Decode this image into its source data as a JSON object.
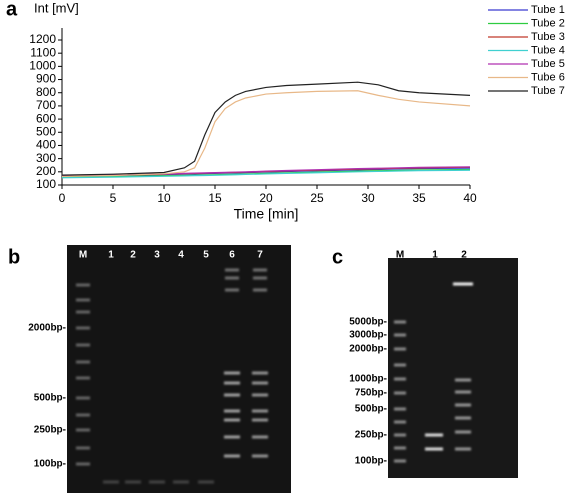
{
  "chart_data": {
    "type": "line",
    "panel": "a",
    "ylabel": "Int [mV]",
    "xlabel": "Time [min]",
    "x": [
      0,
      5,
      10,
      12,
      13,
      14,
      15,
      16,
      17,
      18,
      20,
      22,
      25,
      29,
      31,
      33,
      35,
      40
    ],
    "xlim": [
      0,
      40
    ],
    "xticks": [
      0,
      5,
      10,
      15,
      20,
      25,
      30,
      35,
      40
    ],
    "ylim": [
      100,
      1200
    ],
    "yticks": [
      100,
      200,
      300,
      400,
      500,
      600,
      700,
      800,
      900,
      1000,
      1100,
      1200
    ],
    "series": [
      {
        "name": "Tube 1",
        "color": "#3b3bd0",
        "values": [
          165,
          170,
          178,
          182,
          184,
          186,
          188,
          190,
          192,
          194,
          198,
          202,
          208,
          215,
          218,
          222,
          225,
          228
        ]
      },
      {
        "name": "Tube 2",
        "color": "#2ecc40",
        "values": [
          160,
          164,
          170,
          173,
          175,
          176,
          178,
          180,
          182,
          184,
          188,
          192,
          198,
          205,
          208,
          211,
          214,
          218
        ]
      },
      {
        "name": "Tube 3",
        "color": "#c0392b",
        "values": [
          168,
          174,
          182,
          186,
          188,
          190,
          192,
          194,
          196,
          198,
          202,
          207,
          213,
          220,
          223,
          227,
          230,
          235
        ]
      },
      {
        "name": "Tube 4",
        "color": "#40d0d0",
        "values": [
          155,
          160,
          166,
          169,
          171,
          172,
          174,
          176,
          178,
          180,
          184,
          188,
          193,
          200,
          203,
          206,
          209,
          212
        ]
      },
      {
        "name": "Tube 5",
        "color": "#b030b0",
        "values": [
          170,
          176,
          184,
          188,
          190,
          192,
          194,
          196,
          198,
          200,
          205,
          210,
          216,
          224,
          227,
          230,
          234,
          238
        ]
      },
      {
        "name": "Tube 6",
        "color": "#e8b888",
        "values": [
          165,
          172,
          185,
          200,
          230,
          380,
          580,
          680,
          730,
          760,
          790,
          800,
          810,
          815,
          780,
          750,
          730,
          700
        ]
      },
      {
        "name": "Tube 7",
        "color": "#222222",
        "values": [
          175,
          182,
          195,
          230,
          280,
          480,
          650,
          730,
          780,
          810,
          840,
          855,
          865,
          880,
          860,
          815,
          800,
          780
        ]
      }
    ]
  },
  "gel_b": {
    "panel": "b",
    "lanes": [
      "M",
      "1",
      "2",
      "3",
      "4",
      "5",
      "6",
      "7"
    ],
    "markers": [
      "2000bp-",
      "500bp-",
      "250bp-",
      "100bp-"
    ]
  },
  "gel_c": {
    "panel": "c",
    "lanes": [
      "M",
      "1",
      "2"
    ],
    "markers": [
      "5000bp-",
      "3000bp-",
      "2000bp-",
      "1000bp-",
      "750bp-",
      "500bp-",
      "250bp-",
      "100bp-"
    ]
  }
}
